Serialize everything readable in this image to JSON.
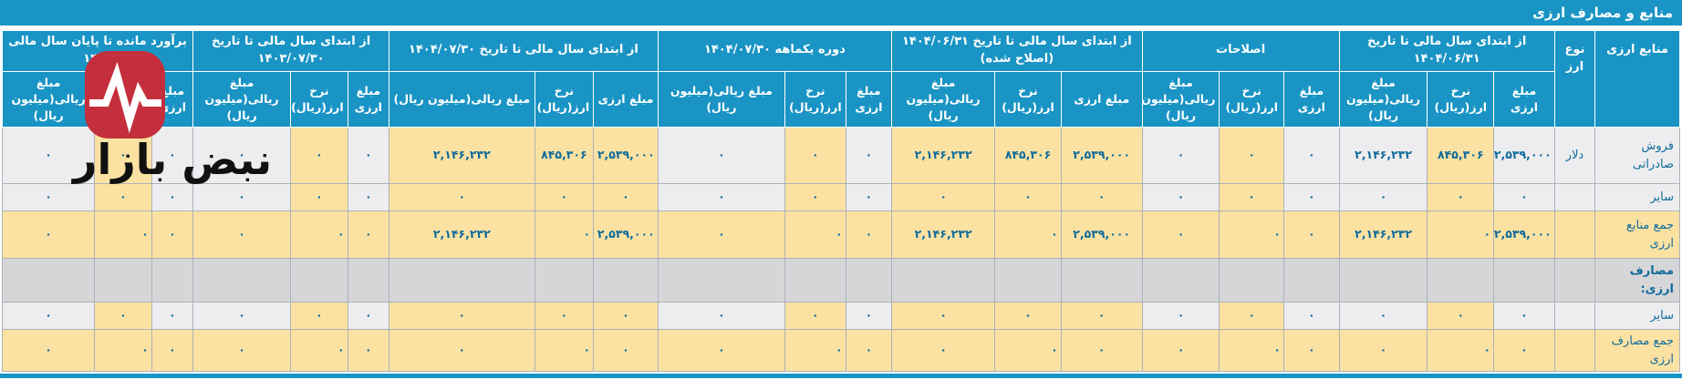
{
  "title": "منابع و مصارف ارزی",
  "watermark": {
    "brand": "نبض بازار",
    "logo_color": "#c42f3d",
    "logo_name": "pulse-heartbeat-logo"
  },
  "colors": {
    "header_teal": "#1994c4",
    "cell_yellow": "#fce2a2",
    "cell_gray": "#ededef",
    "section_gray": "#d6d6d8",
    "text_blue": "#0f6b9b",
    "logo_red": "#c42f3d"
  },
  "table": {
    "row_label_header": "منابع ارزی",
    "currency_type_header": "نوع ارز",
    "sub_headers": [
      "مبلغ ارزی",
      "نرخ ارز(ریال)",
      "مبلغ ریالی(میلیون ریال)"
    ],
    "groups": [
      {
        "label": "از ابتدای سال مالی تا تاریخ ۱۴۰۴/۰۶/۳۱"
      },
      {
        "label": "اصلاحات"
      },
      {
        "label": "از ابتدای سال مالی تا تاریخ ۱۴۰۴/۰۶/۳۱ (اصلاح شده)"
      },
      {
        "label": "دوره یکماهه ۱۴۰۴/۰۷/۳۰"
      },
      {
        "label": "از ابتدای سال مالی تا تاریخ ۱۴۰۴/۰۷/۳۰"
      },
      {
        "label": "از ابتدای سال مالی تا تاریخ ۱۴۰۳/۰۷/۳۰"
      },
      {
        "label": "برآورد مانده تا پایان سال مالی ۱۴۰۴"
      }
    ],
    "rows": [
      {
        "label": "فروش صادراتی",
        "currency": "دلار",
        "kind": "data",
        "cells": [
          [
            "۲,۵۳۹,۰۰۰",
            "۸۴۵,۳۰۶",
            "۲,۱۴۶,۲۳۲"
          ],
          [
            "۰",
            "۰",
            "۰"
          ],
          [
            "۲,۵۳۹,۰۰۰",
            "۸۴۵,۳۰۶",
            "۲,۱۴۶,۲۳۲"
          ],
          [
            "۰",
            "۰",
            "۰"
          ],
          [
            "۲,۵۳۹,۰۰۰",
            "۸۴۵,۳۰۶",
            "۲,۱۴۶,۲۳۲"
          ],
          [
            "۰",
            "۰",
            "۰"
          ],
          [
            "۰",
            "۰",
            "۰"
          ]
        ]
      },
      {
        "label": "سایر",
        "currency": "",
        "kind": "data",
        "cells": [
          [
            "۰",
            "۰",
            "۰"
          ],
          [
            "۰",
            "۰",
            "۰"
          ],
          [
            "۰",
            "۰",
            "۰"
          ],
          [
            "۰",
            "۰",
            "۰"
          ],
          [
            "۰",
            "۰",
            "۰"
          ],
          [
            "۰",
            "۰",
            "۰"
          ],
          [
            "۰",
            "۰",
            "۰"
          ]
        ]
      },
      {
        "label": "جمع منابع ارزی",
        "currency": "",
        "kind": "total",
        "cells": [
          [
            "۲,۵۳۹,۰۰۰",
            "۰",
            "۲,۱۴۶,۲۳۲"
          ],
          [
            "۰",
            "۰",
            "۰"
          ],
          [
            "۲,۵۳۹,۰۰۰",
            "۰",
            "۲,۱۴۶,۲۳۲"
          ],
          [
            "۰",
            "۰",
            "۰"
          ],
          [
            "۲,۵۳۹,۰۰۰",
            "۰",
            "۲,۱۴۶,۲۳۲"
          ],
          [
            "۰",
            "۰",
            "۰"
          ],
          [
            "۰",
            "۰",
            "۰"
          ]
        ]
      },
      {
        "label": "مصارف ارزی:",
        "currency": "",
        "kind": "section",
        "cells": [
          [
            "",
            "",
            ""
          ],
          [
            "",
            "",
            ""
          ],
          [
            "",
            "",
            ""
          ],
          [
            "",
            "",
            ""
          ],
          [
            "",
            "",
            ""
          ],
          [
            "",
            "",
            ""
          ],
          [
            "",
            "",
            ""
          ]
        ]
      },
      {
        "label": "سایر",
        "currency": "",
        "kind": "data",
        "cells": [
          [
            "۰",
            "۰",
            "۰"
          ],
          [
            "۰",
            "۰",
            "۰"
          ],
          [
            "۰",
            "۰",
            "۰"
          ],
          [
            "۰",
            "۰",
            "۰"
          ],
          [
            "۰",
            "۰",
            "۰"
          ],
          [
            "۰",
            "۰",
            "۰"
          ],
          [
            "۰",
            "۰",
            "۰"
          ]
        ]
      },
      {
        "label": "جمع مصارف ارزی",
        "currency": "",
        "kind": "total",
        "cells": [
          [
            "۰",
            "۰",
            "۰"
          ],
          [
            "۰",
            "۰",
            "۰"
          ],
          [
            "۰",
            "۰",
            "۰"
          ],
          [
            "۰",
            "۰",
            "۰"
          ],
          [
            "۰",
            "۰",
            "۰"
          ],
          [
            "۰",
            "۰",
            "۰"
          ],
          [
            "۰",
            "۰",
            "۰"
          ]
        ]
      }
    ]
  }
}
